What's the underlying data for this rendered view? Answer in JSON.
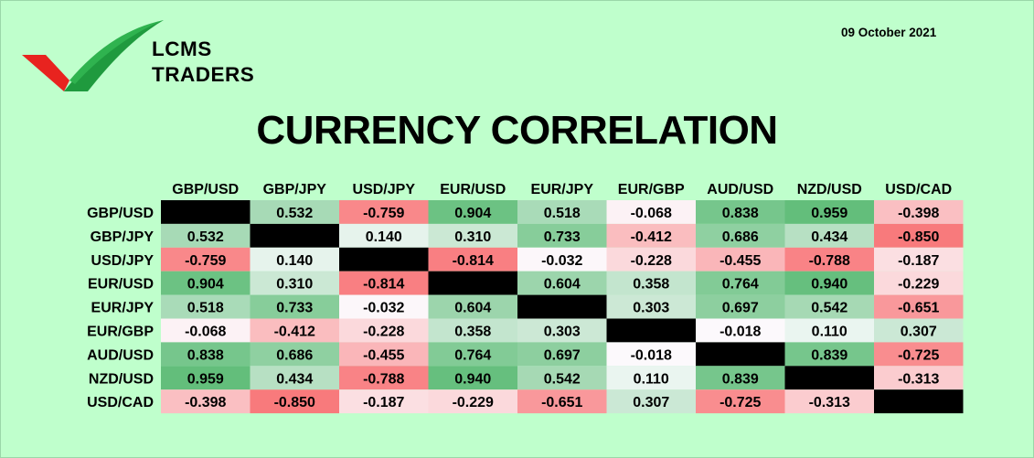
{
  "brand": {
    "line1": "LCMS",
    "line2": "TRADERS",
    "logo_colors": {
      "red": "#e8231f",
      "green": "#1f9a3e"
    }
  },
  "date": "09 October 2021",
  "title": "CURRENCY CORRELATION",
  "chart_data": {
    "type": "heatmap",
    "title": "CURRENCY CORRELATION",
    "columns": [
      "GBP/USD",
      "GBP/JPY",
      "USD/JPY",
      "EUR/USD",
      "EUR/JPY",
      "EUR/GBP",
      "AUD/USD",
      "NZD/USD",
      "USD/CAD"
    ],
    "rows": [
      "GBP/USD",
      "GBP/JPY",
      "USD/JPY",
      "EUR/USD",
      "EUR/JPY",
      "EUR/GBP",
      "AUD/USD",
      "NZD/USD",
      "USD/CAD"
    ],
    "values": [
      [
        null,
        0.532,
        -0.759,
        0.904,
        0.518,
        -0.068,
        0.838,
        0.959,
        -0.398
      ],
      [
        0.532,
        null,
        0.14,
        0.31,
        0.733,
        -0.412,
        0.686,
        0.434,
        -0.85
      ],
      [
        -0.759,
        0.14,
        null,
        -0.814,
        -0.032,
        -0.228,
        -0.455,
        -0.788,
        -0.187
      ],
      [
        0.904,
        0.31,
        -0.814,
        null,
        0.604,
        0.358,
        0.764,
        0.94,
        -0.229
      ],
      [
        0.518,
        0.733,
        -0.032,
        0.604,
        null,
        0.303,
        0.697,
        0.542,
        -0.651
      ],
      [
        -0.068,
        -0.412,
        -0.228,
        0.358,
        0.303,
        null,
        -0.018,
        0.11,
        0.307
      ],
      [
        0.838,
        0.686,
        -0.455,
        0.764,
        0.697,
        -0.018,
        null,
        0.839,
        -0.725
      ],
      [
        0.959,
        0.434,
        -0.788,
        0.94,
        0.542,
        0.11,
        0.839,
        null,
        -0.313
      ],
      [
        -0.398,
        -0.85,
        -0.187,
        -0.229,
        -0.651,
        0.307,
        -0.725,
        -0.313,
        null
      ]
    ],
    "colors": {
      "positive": "#63be7b",
      "negative": "#f8696b",
      "neutral": "#fcfcff",
      "diagonal": "#000000",
      "background": "#bfffcc"
    }
  }
}
